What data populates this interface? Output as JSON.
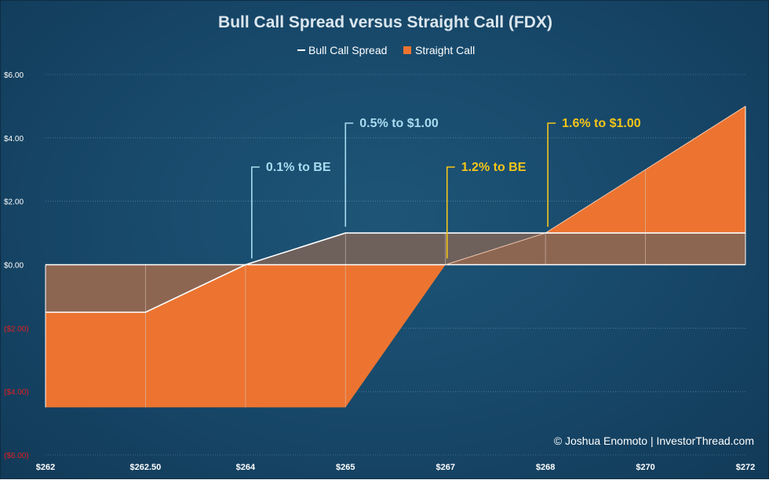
{
  "chart_data": {
    "type": "area",
    "title": "Bull Call Spread versus Straight Call (FDX)",
    "legend_position": "top-center",
    "grid": true,
    "x_tick_labels": [
      "$262",
      "$262.50",
      "$264",
      "$265",
      "$267",
      "$268",
      "$270",
      "$272"
    ],
    "y_tick_labels": [
      "$6.00",
      "$4.00",
      "$2.00",
      "$0.00",
      "($2.00)",
      "($4.00)",
      "($6.00)"
    ],
    "y_ticks": [
      6,
      4,
      2,
      0,
      -2,
      -4,
      -6
    ],
    "ylim": [
      -6,
      6
    ],
    "series": [
      {
        "name": "Bull Call Spread",
        "values": [
          -1.5,
          -1.5,
          0,
          1,
          1,
          1,
          1,
          1
        ]
      },
      {
        "name": "Straight Call",
        "values": [
          -4.5,
          -4.5,
          -4.5,
          -4.5,
          0,
          1,
          3,
          5
        ]
      }
    ],
    "annotations": [
      {
        "text": "0.1% to BE",
        "series": "Bull Call Spread",
        "x_index": 2,
        "color": "#a9dcf0"
      },
      {
        "text": "0.5% to $1.00",
        "series": "Bull Call Spread",
        "x_index": 3,
        "color": "#a9dcf0"
      },
      {
        "text": "1.2% to BE",
        "series": "Straight Call",
        "x_index": 4,
        "color": "#f5c518"
      },
      {
        "text": "1.6% to $1.00",
        "series": "Straight Call",
        "x_index": 5,
        "color": "#f5c518"
      }
    ],
    "copyright": "© Joshua Enomoto | InvestorThread.com",
    "colors": {
      "spread_line": "#ffffff",
      "spread_fill": "#7d6458",
      "call_fill": "#ec7430",
      "axis_label": "#ffffff",
      "negative_label": "#e02020"
    }
  }
}
